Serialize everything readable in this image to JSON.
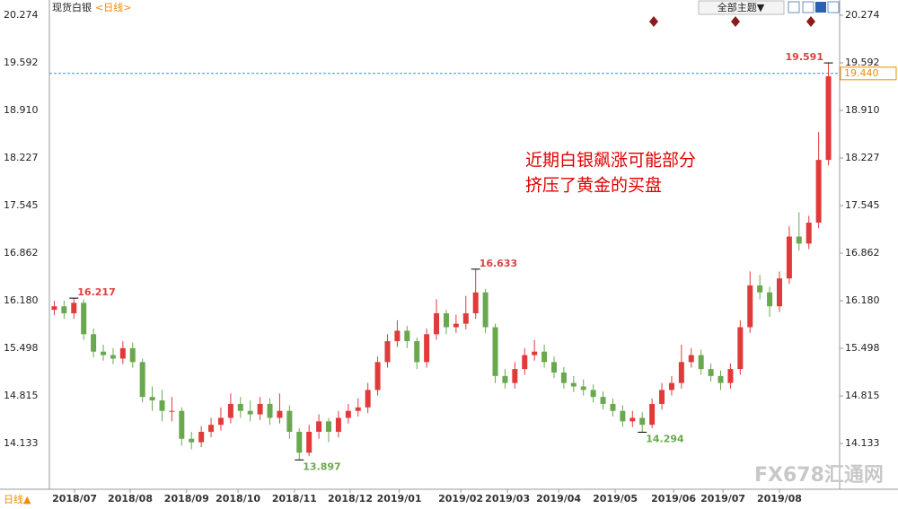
{
  "chart_data": {
    "type": "candlestick",
    "title": "现货白银",
    "period": "<日线>",
    "period_button": "日线▲",
    "theme_button": "全部主题▼",
    "annotation_lines": [
      "近期白银飙涨可能部分",
      "挤压了黄金的买盘"
    ],
    "watermark": "FX678汇通网",
    "up_color": "#e03a3a",
    "down_color": "#6aa84f",
    "ylim": [
      13.476,
      20.429
    ],
    "yticks": [
      14.133,
      14.815,
      15.498,
      {
        "value": 16.18,
        "label": "16.180"
      },
      16.862,
      17.545,
      18.227,
      {
        "value": 18.91,
        "label": "18.910"
      },
      19.592,
      20.274
    ],
    "xlim": [
      0,
      80
    ],
    "xticks": [
      {
        "value": 2.57,
        "label": "2018/07"
      },
      {
        "value": 8.25,
        "label": "2018/08"
      },
      {
        "value": 14.0,
        "label": "2018/09"
      },
      {
        "value": 19.25,
        "label": "2018/10"
      },
      {
        "value": 25.0,
        "label": "2018/11"
      },
      {
        "value": 30.7,
        "label": "2018/12"
      },
      {
        "value": 35.7,
        "label": "2019/01"
      },
      {
        "value": 41.98,
        "label": "2019/02"
      },
      {
        "value": 46.75,
        "label": "2019/03"
      },
      {
        "value": 51.97,
        "label": "2019/04"
      },
      {
        "value": 57.74,
        "label": "2019/05"
      },
      {
        "value": 63.7,
        "label": "2019/06"
      },
      {
        "value": 68.74,
        "label": "2019/07"
      },
      {
        "value": 74.5,
        "label": "2019/08"
      }
    ],
    "open": [
      16.05,
      16.1,
      16.0,
      16.15,
      15.7,
      15.45,
      15.4,
      15.35,
      15.5,
      15.3,
      14.8,
      14.75,
      14.6,
      14.6,
      14.2,
      14.15,
      14.3,
      14.4,
      14.5,
      14.7,
      14.6,
      14.55,
      14.7,
      14.5,
      14.6,
      14.3,
      14.0,
      14.3,
      14.45,
      14.3,
      14.5,
      14.6,
      14.65,
      14.9,
      15.3,
      15.6,
      15.75,
      15.6,
      15.3,
      15.7,
      16.0,
      15.8,
      15.85,
      16.0,
      16.3,
      15.8,
      15.1,
      15.0,
      15.2,
      15.4,
      15.45,
      15.3,
      15.15,
      15.0,
      14.95,
      14.9,
      14.8,
      14.7,
      14.6,
      14.45,
      14.5,
      14.4,
      14.7,
      14.9,
      15.0,
      15.3,
      15.4,
      15.2,
      15.1,
      15.0,
      15.2,
      15.8,
      16.4,
      16.3,
      16.1,
      16.5,
      17.1,
      17.0,
      17.3,
      18.2
    ],
    "high": [
      16.18,
      16.18,
      16.217,
      16.2,
      15.78,
      15.55,
      15.5,
      15.6,
      15.58,
      15.35,
      14.95,
      14.9,
      14.8,
      14.65,
      14.3,
      14.38,
      14.5,
      14.65,
      14.85,
      14.8,
      14.75,
      14.8,
      14.78,
      14.85,
      14.68,
      14.35,
      14.4,
      14.55,
      14.5,
      14.6,
      14.7,
      14.78,
      15.0,
      15.38,
      15.7,
      15.9,
      15.82,
      15.65,
      15.78,
      16.2,
      16.05,
      15.98,
      16.25,
      16.633,
      16.35,
      15.85,
      15.2,
      15.3,
      15.5,
      15.62,
      15.55,
      15.38,
      15.23,
      15.1,
      15.05,
      14.98,
      14.88,
      14.78,
      14.68,
      14.6,
      14.58,
      14.78,
      15.0,
      15.1,
      15.55,
      15.5,
      15.48,
      15.28,
      15.18,
      15.28,
      15.9,
      16.6,
      16.55,
      16.38,
      16.6,
      17.25,
      17.45,
      17.4,
      18.6,
      19.591
    ],
    "low": [
      15.97,
      15.92,
      15.92,
      15.62,
      15.37,
      15.32,
      15.27,
      15.27,
      15.22,
      14.72,
      14.6,
      14.45,
      14.45,
      14.1,
      14.05,
      14.08,
      14.22,
      14.32,
      14.42,
      14.5,
      14.45,
      14.47,
      14.4,
      14.42,
      14.2,
      13.897,
      13.95,
      14.2,
      14.15,
      14.22,
      14.42,
      14.52,
      14.57,
      14.82,
      15.22,
      15.52,
      15.5,
      15.2,
      15.22,
      15.62,
      15.7,
      15.72,
      15.77,
      15.92,
      15.72,
      15.0,
      14.92,
      14.92,
      15.12,
      15.32,
      15.22,
      15.07,
      14.92,
      14.87,
      14.82,
      14.72,
      14.62,
      14.52,
      14.37,
      14.37,
      14.294,
      14.35,
      14.62,
      14.82,
      14.92,
      15.22,
      15.12,
      15.02,
      14.9,
      14.92,
      15.12,
      15.72,
      16.2,
      15.95,
      16.02,
      16.42,
      16.9,
      16.92,
      17.22,
      18.12
    ],
    "close": [
      16.1,
      16.0,
      16.15,
      15.7,
      15.45,
      15.4,
      15.35,
      15.5,
      15.3,
      14.8,
      14.75,
      14.6,
      14.6,
      14.2,
      14.15,
      14.3,
      14.4,
      14.5,
      14.7,
      14.6,
      14.55,
      14.7,
      14.5,
      14.6,
      14.3,
      14.0,
      14.3,
      14.45,
      14.3,
      14.5,
      14.6,
      14.65,
      14.9,
      15.3,
      15.6,
      15.75,
      15.6,
      15.3,
      15.7,
      16.0,
      15.8,
      15.85,
      16.0,
      16.3,
      15.8,
      15.1,
      15.0,
      15.2,
      15.4,
      15.45,
      15.3,
      15.15,
      15.0,
      14.95,
      14.9,
      14.8,
      14.7,
      14.6,
      14.45,
      14.5,
      14.4,
      14.7,
      14.9,
      15.0,
      15.3,
      15.4,
      15.2,
      15.1,
      15.0,
      15.2,
      15.8,
      16.4,
      16.3,
      16.1,
      16.5,
      17.1,
      17.0,
      17.3,
      18.2,
      19.4
    ],
    "marked_highs": [
      2,
      43,
      79
    ],
    "marked_lows": [
      25,
      60
    ],
    "last_price": 19.44,
    "last_price_label": "19.440"
  }
}
